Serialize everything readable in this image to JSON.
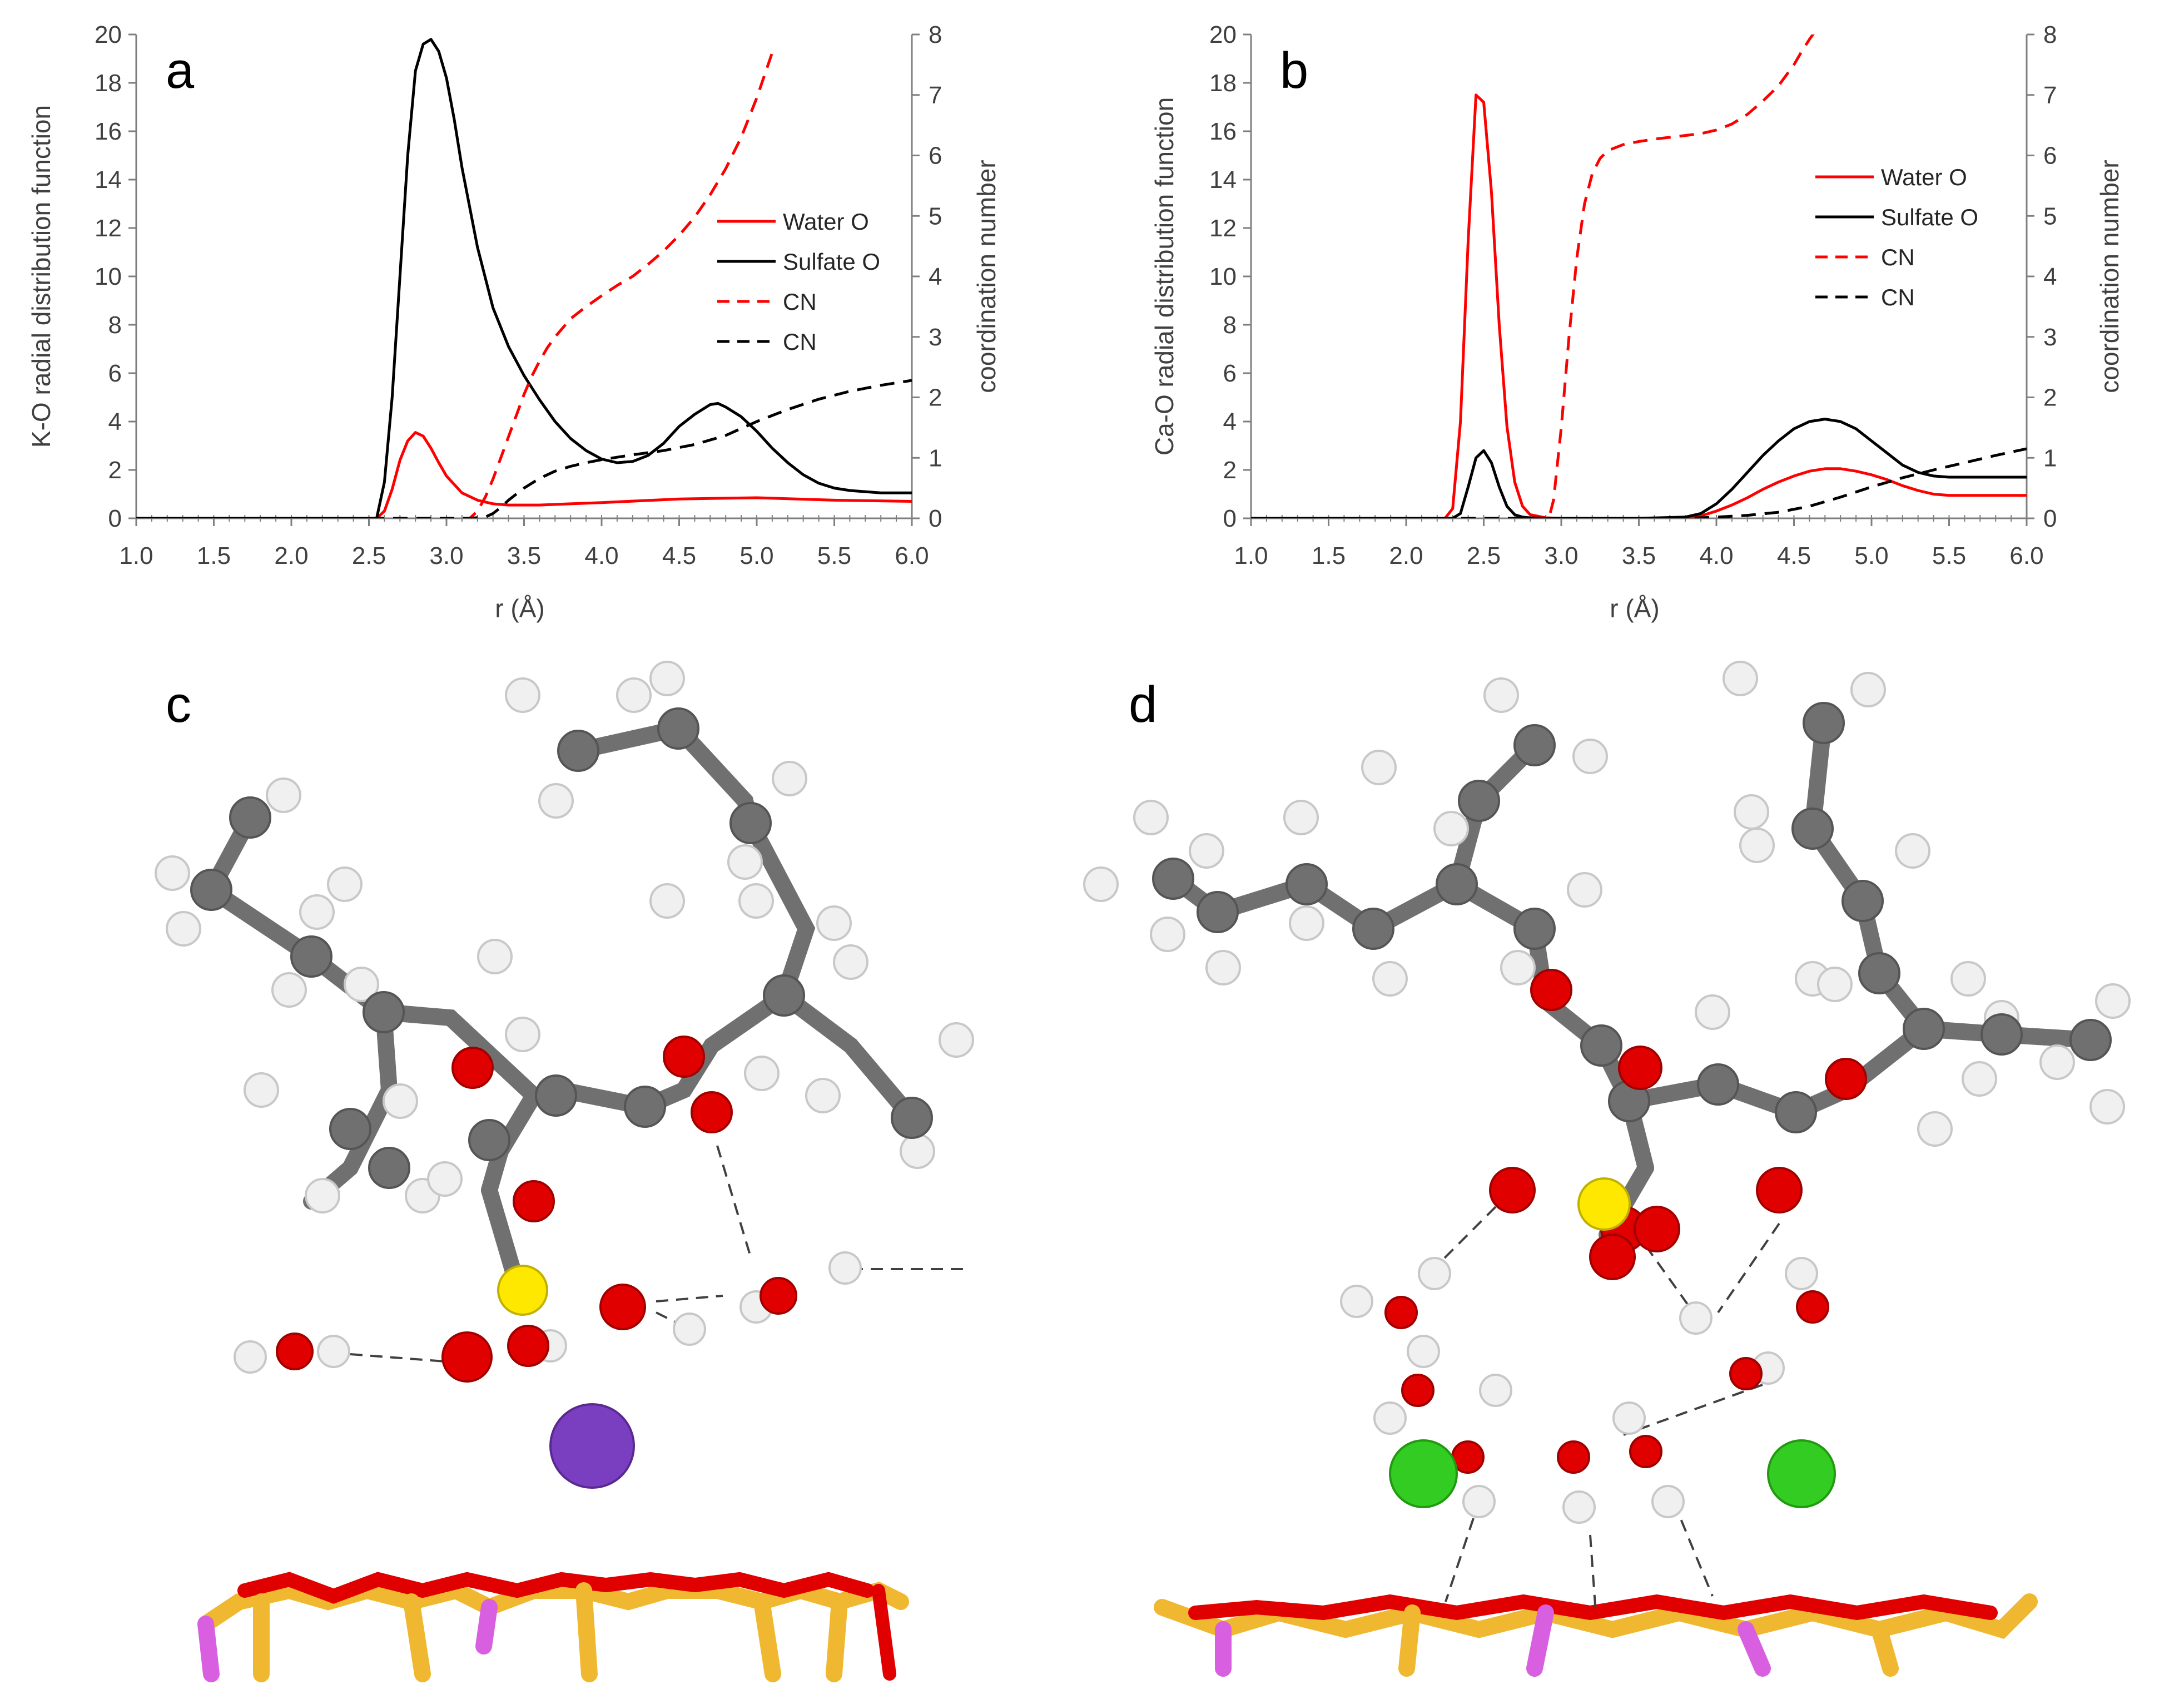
{
  "panels": {
    "c": {
      "label": "c"
    },
    "d": {
      "label": "d"
    }
  },
  "colors": {
    "water": "#ff0000",
    "sulfate": "#000000",
    "carbon": "#707070",
    "hydrogen": "#f2f2f2",
    "oxygen": "#e00000",
    "sulfur": "#ffe800",
    "potassium": "#7a3fc0",
    "calcium": "#33cc22",
    "silicon": "#f0b830",
    "aluminum": "#d860e0"
  },
  "chart_data": [
    {
      "type": "line",
      "panel_label": "a",
      "xlabel": "r (Å)",
      "ylabel": "K-O radial distribution function",
      "y2label": "coordination number",
      "xlim": [
        1.0,
        6.0
      ],
      "ylim": [
        0,
        20
      ],
      "y2lim": [
        0,
        8
      ],
      "xticks": [
        "1.0",
        "1.5",
        "2.0",
        "2.5",
        "3.0",
        "3.5",
        "4.0",
        "4.5",
        "5.0",
        "5.5",
        "6.0"
      ],
      "yticks": [
        "0",
        "2",
        "4",
        "6",
        "8",
        "10",
        "12",
        "14",
        "16",
        "18",
        "20"
      ],
      "y2ticks": [
        "0",
        "1",
        "2",
        "3",
        "4",
        "5",
        "6",
        "7",
        "8"
      ],
      "legend_position": "right",
      "series": [
        {
          "name": "Water O",
          "axis": "left",
          "style": "solid",
          "color": "#ff0000",
          "x": [
            1.0,
            2.5,
            2.55,
            2.6,
            2.65,
            2.7,
            2.75,
            2.8,
            2.85,
            2.9,
            2.95,
            3.0,
            3.1,
            3.2,
            3.3,
            3.4,
            3.6,
            4.0,
            4.5,
            5.0,
            5.5,
            6.0
          ],
          "y": [
            0,
            0,
            0,
            0.3,
            1.2,
            2.4,
            3.2,
            3.55,
            3.4,
            2.9,
            2.3,
            1.75,
            1.05,
            0.75,
            0.6,
            0.55,
            0.55,
            0.65,
            0.8,
            0.85,
            0.75,
            0.7
          ]
        },
        {
          "name": "Sulfate O",
          "axis": "left",
          "style": "solid",
          "color": "#000000",
          "x": [
            1.0,
            2.55,
            2.6,
            2.65,
            2.7,
            2.75,
            2.8,
            2.85,
            2.9,
            2.95,
            3.0,
            3.05,
            3.1,
            3.2,
            3.3,
            3.4,
            3.5,
            3.6,
            3.7,
            3.8,
            3.9,
            4.0,
            4.1,
            4.2,
            4.3,
            4.4,
            4.5,
            4.6,
            4.7,
            4.75,
            4.8,
            4.9,
            5.0,
            5.1,
            5.2,
            5.3,
            5.4,
            5.5,
            5.6,
            5.7,
            5.8,
            5.9,
            6.0
          ],
          "y": [
            0,
            0,
            1.5,
            5,
            10,
            15,
            18.5,
            19.6,
            19.8,
            19.3,
            18.2,
            16.5,
            14.5,
            11.2,
            8.7,
            7.1,
            5.9,
            4.9,
            4.0,
            3.3,
            2.8,
            2.45,
            2.3,
            2.35,
            2.6,
            3.1,
            3.8,
            4.3,
            4.7,
            4.75,
            4.6,
            4.2,
            3.6,
            2.9,
            2.3,
            1.8,
            1.45,
            1.25,
            1.15,
            1.1,
            1.05,
            1.05,
            1.05
          ]
        },
        {
          "name": "CN",
          "axis": "right",
          "style": "dashed",
          "color": "#ff0000",
          "x": [
            1.0,
            3.15,
            3.2,
            3.25,
            3.3,
            3.35,
            3.4,
            3.45,
            3.5,
            3.55,
            3.6,
            3.65,
            3.7,
            3.8,
            3.9,
            4.0,
            4.1,
            4.2,
            4.3,
            4.4,
            4.5,
            4.6,
            4.7,
            4.8,
            4.9,
            5.0,
            5.1
          ],
          "y": [
            0,
            0,
            0.12,
            0.35,
            0.65,
            1.0,
            1.35,
            1.7,
            2.05,
            2.35,
            2.6,
            2.82,
            3.0,
            3.3,
            3.5,
            3.68,
            3.85,
            4.0,
            4.2,
            4.42,
            4.68,
            4.98,
            5.35,
            5.78,
            6.3,
            6.95,
            7.7
          ]
        },
        {
          "name": "CN",
          "axis": "right",
          "style": "dashed",
          "color": "#000000",
          "x": [
            1.0,
            3.15,
            3.25,
            3.3,
            3.35,
            3.4,
            3.5,
            3.6,
            3.7,
            3.8,
            3.9,
            4.0,
            4.2,
            4.4,
            4.6,
            4.8,
            5.0,
            5.2,
            5.4,
            5.6,
            5.8,
            6.0
          ],
          "y": [
            0,
            0,
            0.02,
            0.08,
            0.18,
            0.3,
            0.5,
            0.66,
            0.78,
            0.86,
            0.92,
            0.97,
            1.05,
            1.12,
            1.22,
            1.37,
            1.6,
            1.8,
            1.97,
            2.1,
            2.2,
            2.28
          ]
        }
      ]
    },
    {
      "type": "line",
      "panel_label": "b",
      "xlabel": "r (Å)",
      "ylabel": "Ca-O radial distribution function",
      "y2label": "coordination number",
      "xlim": [
        1.0,
        6.0
      ],
      "ylim": [
        0,
        20
      ],
      "y2lim": [
        0,
        8
      ],
      "xticks": [
        "1.0",
        "1.5",
        "2.0",
        "2.5",
        "3.0",
        "3.5",
        "4.0",
        "4.5",
        "5.0",
        "5.5",
        "6.0"
      ],
      "yticks": [
        "0",
        "2",
        "4",
        "6",
        "8",
        "10",
        "12",
        "14",
        "16",
        "18",
        "20"
      ],
      "y2ticks": [
        "0",
        "1",
        "2",
        "3",
        "4",
        "5",
        "6",
        "7",
        "8"
      ],
      "legend_position": "right",
      "series": [
        {
          "name": "Water O",
          "axis": "left",
          "style": "solid",
          "color": "#ff0000",
          "x": [
            1.0,
            2.25,
            2.3,
            2.35,
            2.4,
            2.45,
            2.5,
            2.55,
            2.6,
            2.65,
            2.7,
            2.75,
            2.8,
            2.9,
            3.0,
            3.5,
            3.8,
            3.9,
            4.0,
            4.1,
            4.2,
            4.3,
            4.4,
            4.5,
            4.6,
            4.7,
            4.8,
            4.9,
            5.0,
            5.1,
            5.2,
            5.3,
            5.4,
            5.5,
            5.6,
            5.8,
            6.0
          ],
          "y": [
            0,
            0,
            0.4,
            4.0,
            11.5,
            17.5,
            17.2,
            13.5,
            8.0,
            3.8,
            1.5,
            0.5,
            0.15,
            0.02,
            0,
            0,
            0.02,
            0.1,
            0.3,
            0.55,
            0.85,
            1.2,
            1.5,
            1.75,
            1.95,
            2.05,
            2.05,
            1.95,
            1.8,
            1.6,
            1.35,
            1.15,
            1.0,
            0.95,
            0.95,
            0.95,
            0.95
          ]
        },
        {
          "name": "Sulfate O",
          "axis": "left",
          "style": "solid",
          "color": "#000000",
          "x": [
            1.0,
            2.3,
            2.35,
            2.4,
            2.45,
            2.5,
            2.55,
            2.6,
            2.65,
            2.7,
            2.75,
            2.8,
            2.9,
            3.0,
            3.5,
            3.8,
            3.9,
            4.0,
            4.1,
            4.2,
            4.3,
            4.4,
            4.5,
            4.6,
            4.7,
            4.8,
            4.9,
            5.0,
            5.1,
            5.2,
            5.3,
            5.4,
            5.5,
            5.6,
            5.8,
            6.0
          ],
          "y": [
            0,
            0,
            0.2,
            1.3,
            2.5,
            2.8,
            2.3,
            1.3,
            0.5,
            0.15,
            0.05,
            0.02,
            0,
            0,
            0,
            0.05,
            0.2,
            0.6,
            1.2,
            1.9,
            2.6,
            3.2,
            3.7,
            4.0,
            4.1,
            4.0,
            3.7,
            3.2,
            2.7,
            2.2,
            1.9,
            1.75,
            1.7,
            1.7,
            1.7,
            1.7
          ]
        },
        {
          "name": "CN",
          "axis": "right",
          "style": "dashed",
          "color": "#ff0000",
          "x": [
            1.0,
            2.92,
            2.95,
            3.0,
            3.05,
            3.1,
            3.15,
            3.2,
            3.25,
            3.3,
            3.4,
            3.5,
            3.6,
            3.7,
            3.8,
            3.9,
            4.0,
            4.1,
            4.2,
            4.3,
            4.4,
            4.5,
            4.55,
            4.6,
            4.65
          ],
          "y": [
            0,
            0,
            0.3,
            1.5,
            3.0,
            4.3,
            5.2,
            5.7,
            5.95,
            6.08,
            6.18,
            6.23,
            6.27,
            6.3,
            6.33,
            6.36,
            6.42,
            6.52,
            6.68,
            6.9,
            7.15,
            7.5,
            7.72,
            7.92,
            8.1
          ]
        },
        {
          "name": "CN",
          "axis": "right",
          "style": "dashed",
          "color": "#000000",
          "x": [
            1.0,
            3.8,
            4.0,
            4.2,
            4.4,
            4.6,
            4.8,
            5.0,
            5.2,
            5.4,
            5.6,
            5.8,
            6.0
          ],
          "y": [
            0,
            0,
            0.02,
            0.05,
            0.1,
            0.2,
            0.35,
            0.52,
            0.67,
            0.8,
            0.92,
            1.04,
            1.15
          ]
        }
      ]
    }
  ]
}
